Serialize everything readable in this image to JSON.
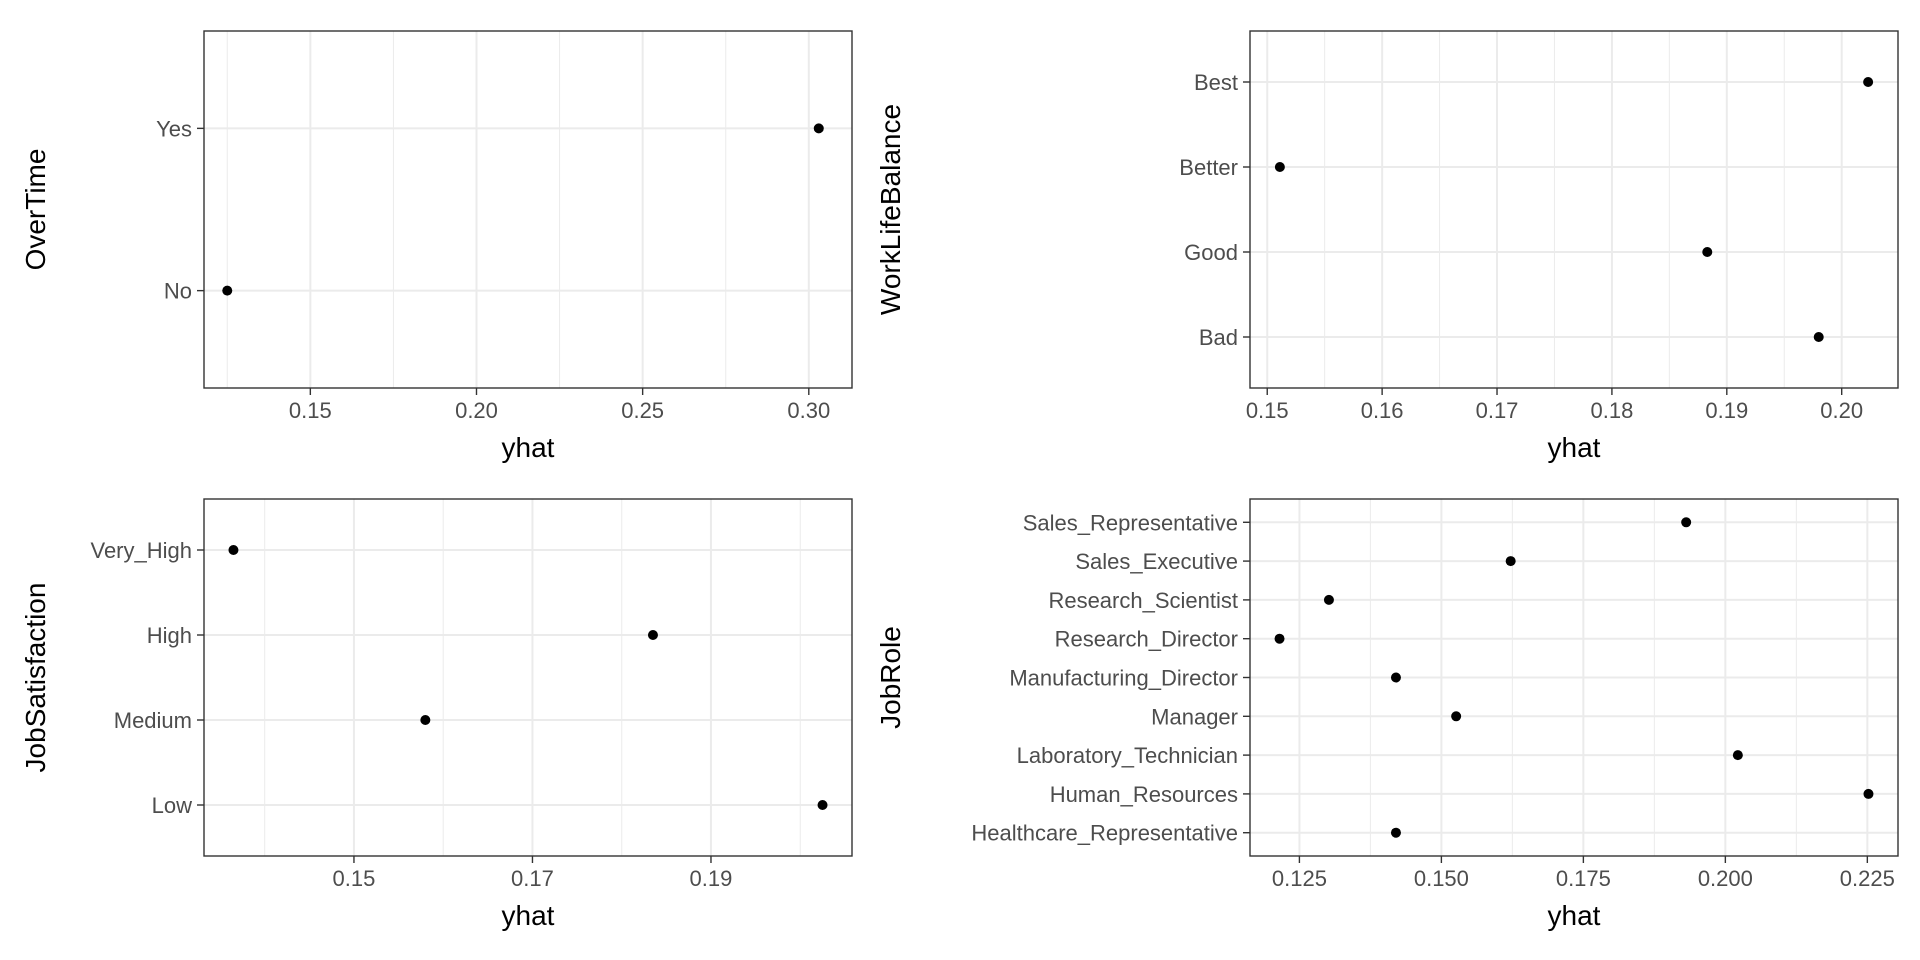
{
  "chart_data": [
    {
      "type": "scatter",
      "xlabel": "yhat",
      "ylabel": "OverTime",
      "categories": [
        "No",
        "Yes"
      ],
      "values": [
        0.125,
        0.303
      ],
      "xlim": [
        0.118,
        0.313
      ],
      "xticks": [
        0.15,
        0.2,
        0.25,
        0.3
      ],
      "xtick_labels": [
        "0.15",
        "0.20",
        "0.25",
        "0.30"
      ],
      "grid": true
    },
    {
      "type": "scatter",
      "xlabel": "yhat",
      "ylabel": "WorkLifeBalance",
      "categories": [
        "Bad",
        "Good",
        "Better",
        "Best"
      ],
      "values": [
        0.198,
        0.1883,
        0.1511,
        0.2023
      ],
      "xlim": [
        0.1485,
        0.2049
      ],
      "xticks": [
        0.15,
        0.16,
        0.17,
        0.18,
        0.19,
        0.2
      ],
      "xtick_labels": [
        "0.15",
        "0.16",
        "0.17",
        "0.18",
        "0.19",
        "0.20"
      ],
      "grid": true
    },
    {
      "type": "scatter",
      "xlabel": "yhat",
      "ylabel": "JobSatisfaction",
      "categories": [
        "Low",
        "Medium",
        "High",
        "Very_High"
      ],
      "values": [
        0.2025,
        0.158,
        0.1835,
        0.1365
      ],
      "xlim": [
        0.1332,
        0.2058
      ],
      "xticks": [
        0.15,
        0.17,
        0.19
      ],
      "xtick_labels": [
        "0.15",
        "0.17",
        "0.19"
      ],
      "grid": true
    },
    {
      "type": "scatter",
      "xlabel": "yhat",
      "ylabel": "JobRole",
      "categories": [
        "Healthcare_Representative",
        "Human_Resources",
        "Laboratory_Technician",
        "Manager",
        "Manufacturing_Director",
        "Research_Director",
        "Research_Scientist",
        "Sales_Executive",
        "Sales_Representative"
      ],
      "values": [
        0.142,
        0.2252,
        0.2022,
        0.1526,
        0.142,
        0.1215,
        0.1302,
        0.1622,
        0.1931
      ],
      "xlim": [
        0.1163,
        0.2304
      ],
      "xticks": [
        0.125,
        0.15,
        0.175,
        0.2,
        0.225
      ],
      "xtick_labels": [
        "0.125",
        "0.150",
        "0.175",
        "0.200",
        "0.225"
      ],
      "grid": true
    }
  ]
}
